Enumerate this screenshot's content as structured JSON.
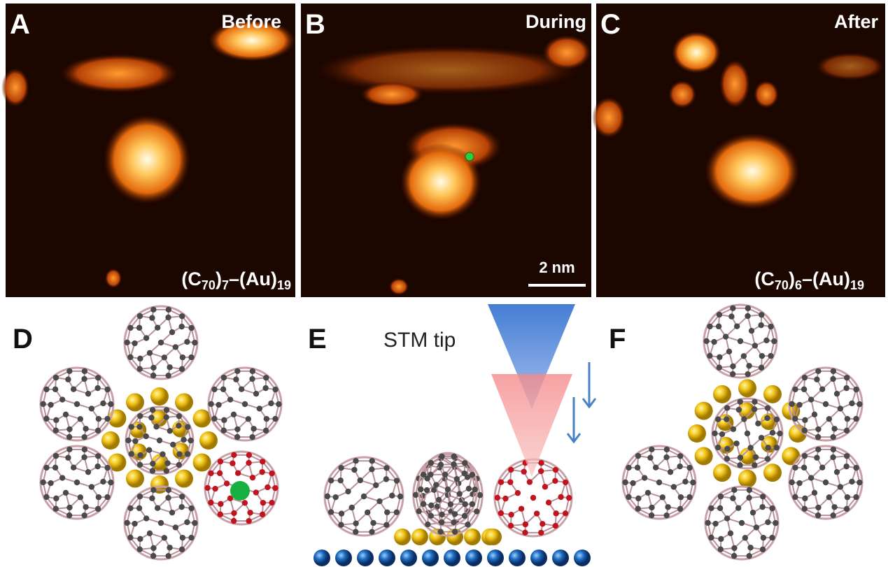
{
  "panels": [
    {
      "letter": "A",
      "label": "Before",
      "formula": [
        "(C",
        "70",
        ")",
        "7",
        "–(Au)",
        "19"
      ]
    },
    {
      "letter": "B",
      "label": "During",
      "scale_bar": "2 nm"
    },
    {
      "letter": "C",
      "label": "After",
      "formula": [
        "(C",
        "70",
        ")",
        "6",
        "–(Au)",
        "19"
      ]
    }
  ],
  "schematics": [
    {
      "letter": "D"
    },
    {
      "letter": "E",
      "tip_label": "STM tip"
    },
    {
      "letter": "F"
    }
  ]
}
